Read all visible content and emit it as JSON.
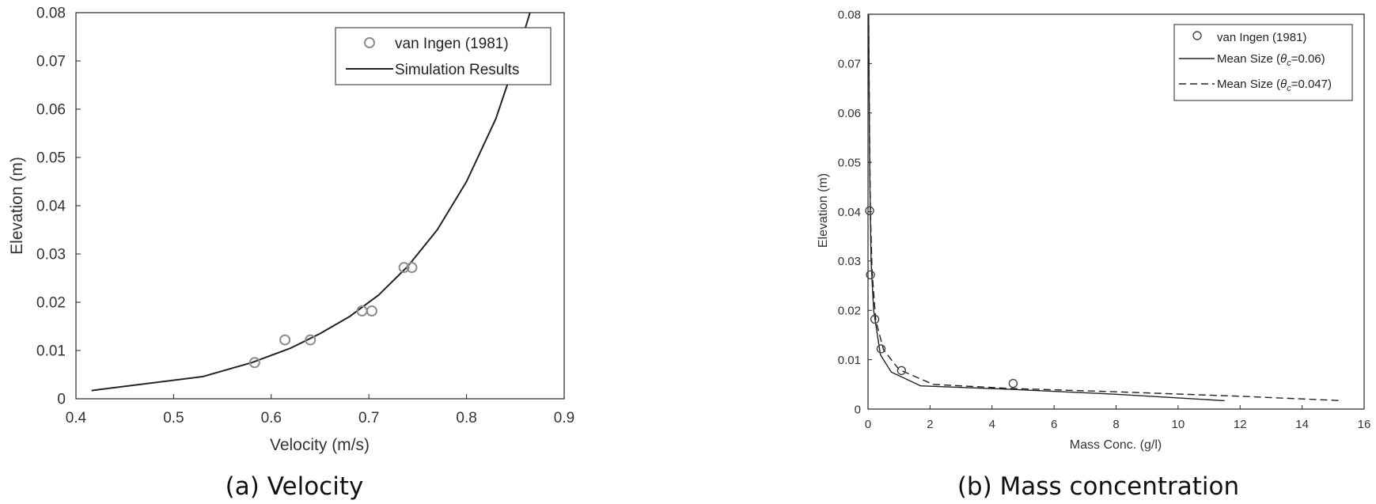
{
  "chart_data": [
    {
      "type": "line",
      "caption": "(a) Velocity",
      "xlabel": "Velocity (m/s)",
      "ylabel": "Elevation (m)",
      "xlim": [
        0.4,
        0.9
      ],
      "ylim": [
        0,
        0.08
      ],
      "xticks": [
        0.4,
        0.5,
        0.6,
        0.7,
        0.8,
        0.9
      ],
      "xtick_labels": [
        "0.4",
        "0.5",
        "0.6",
        "0.7",
        "0.8",
        "0.9"
      ],
      "yticks": [
        0,
        0.01,
        0.02,
        0.03,
        0.04,
        0.05,
        0.06,
        0.07,
        0.08
      ],
      "ytick_labels": [
        "0",
        "0.01",
        "0.02",
        "0.03",
        "0.04",
        "0.05",
        "0.06",
        "0.07",
        "0.08"
      ],
      "grid": false,
      "legend_position": "top-right",
      "series": [
        {
          "name": "van Ingen (1981)",
          "kind": "scatter",
          "marker": "open-circle",
          "color": "#8c8c8c",
          "x": [
            0.583,
            0.614,
            0.64,
            0.693,
            0.703,
            0.736,
            0.744
          ],
          "y": [
            0.0075,
            0.0122,
            0.0122,
            0.0182,
            0.0182,
            0.0272,
            0.0272
          ]
        },
        {
          "name": "Simulation Results",
          "kind": "line",
          "dash": "solid",
          "color": "#222222",
          "x": [
            0.416,
            0.53,
            0.58,
            0.62,
            0.65,
            0.68,
            0.71,
            0.74,
            0.77,
            0.8,
            0.83,
            0.85,
            0.865
          ],
          "y": [
            0.0017,
            0.0046,
            0.0075,
            0.0105,
            0.0135,
            0.017,
            0.0215,
            0.0275,
            0.035,
            0.045,
            0.058,
            0.07,
            0.08
          ]
        }
      ]
    },
    {
      "type": "line",
      "caption": "(b) Mass concentration",
      "xlabel": "Mass Conc. (g/l)",
      "ylabel": "Elevation (m)",
      "xlim": [
        0,
        16
      ],
      "ylim": [
        0,
        0.08
      ],
      "xticks": [
        0,
        2,
        4,
        6,
        8,
        10,
        12,
        14,
        16
      ],
      "xtick_labels": [
        "0",
        "2",
        "4",
        "6",
        "8",
        "10",
        "12",
        "14",
        "16"
      ],
      "yticks": [
        0,
        0.01,
        0.02,
        0.03,
        0.04,
        0.05,
        0.06,
        0.07,
        0.08
      ],
      "ytick_labels": [
        "0",
        "0.01",
        "0.02",
        "0.03",
        "0.04",
        "0.05",
        "0.06",
        "0.07",
        "0.08"
      ],
      "grid": false,
      "legend_position": "top-right",
      "series": [
        {
          "name": "van Ingen (1981)",
          "kind": "scatter",
          "marker": "open-circle",
          "color": "#444444",
          "x": [
            0.05,
            0.08,
            0.22,
            0.42,
            1.08,
            4.68
          ],
          "y": [
            0.0402,
            0.0272,
            0.0182,
            0.0122,
            0.0078,
            0.0052
          ]
        },
        {
          "name": "Mean Size (θc=0.06)",
          "kind": "line",
          "dash": "solid",
          "color": "#222222",
          "x": [
            0.02,
            0.04,
            0.06,
            0.1,
            0.18,
            0.4,
            0.75,
            1.7,
            4.6,
            8.0,
            11.5
          ],
          "y": [
            0.08,
            0.06,
            0.045,
            0.03,
            0.02,
            0.011,
            0.0075,
            0.0047,
            0.004,
            0.003,
            0.0017
          ]
        },
        {
          "name": "Mean Size (θc=0.047)",
          "kind": "line",
          "dash": "dashed",
          "color": "#222222",
          "x": [
            0.02,
            0.05,
            0.08,
            0.13,
            0.25,
            0.5,
            1.0,
            2.1,
            4.5,
            8.0,
            12.0,
            15.3
          ],
          "y": [
            0.08,
            0.055,
            0.04,
            0.028,
            0.018,
            0.012,
            0.008,
            0.005,
            0.0042,
            0.0035,
            0.0026,
            0.0017
          ]
        }
      ]
    }
  ],
  "legend_labels": {
    "a": [
      "van Ingen (1981)",
      "Simulation Results"
    ],
    "b": [
      "van Ingen (1981)",
      "Mean Size (",
      "θ",
      "c",
      "=0.06)",
      "Mean Size (",
      "θ",
      "c",
      "=0.047)"
    ]
  }
}
